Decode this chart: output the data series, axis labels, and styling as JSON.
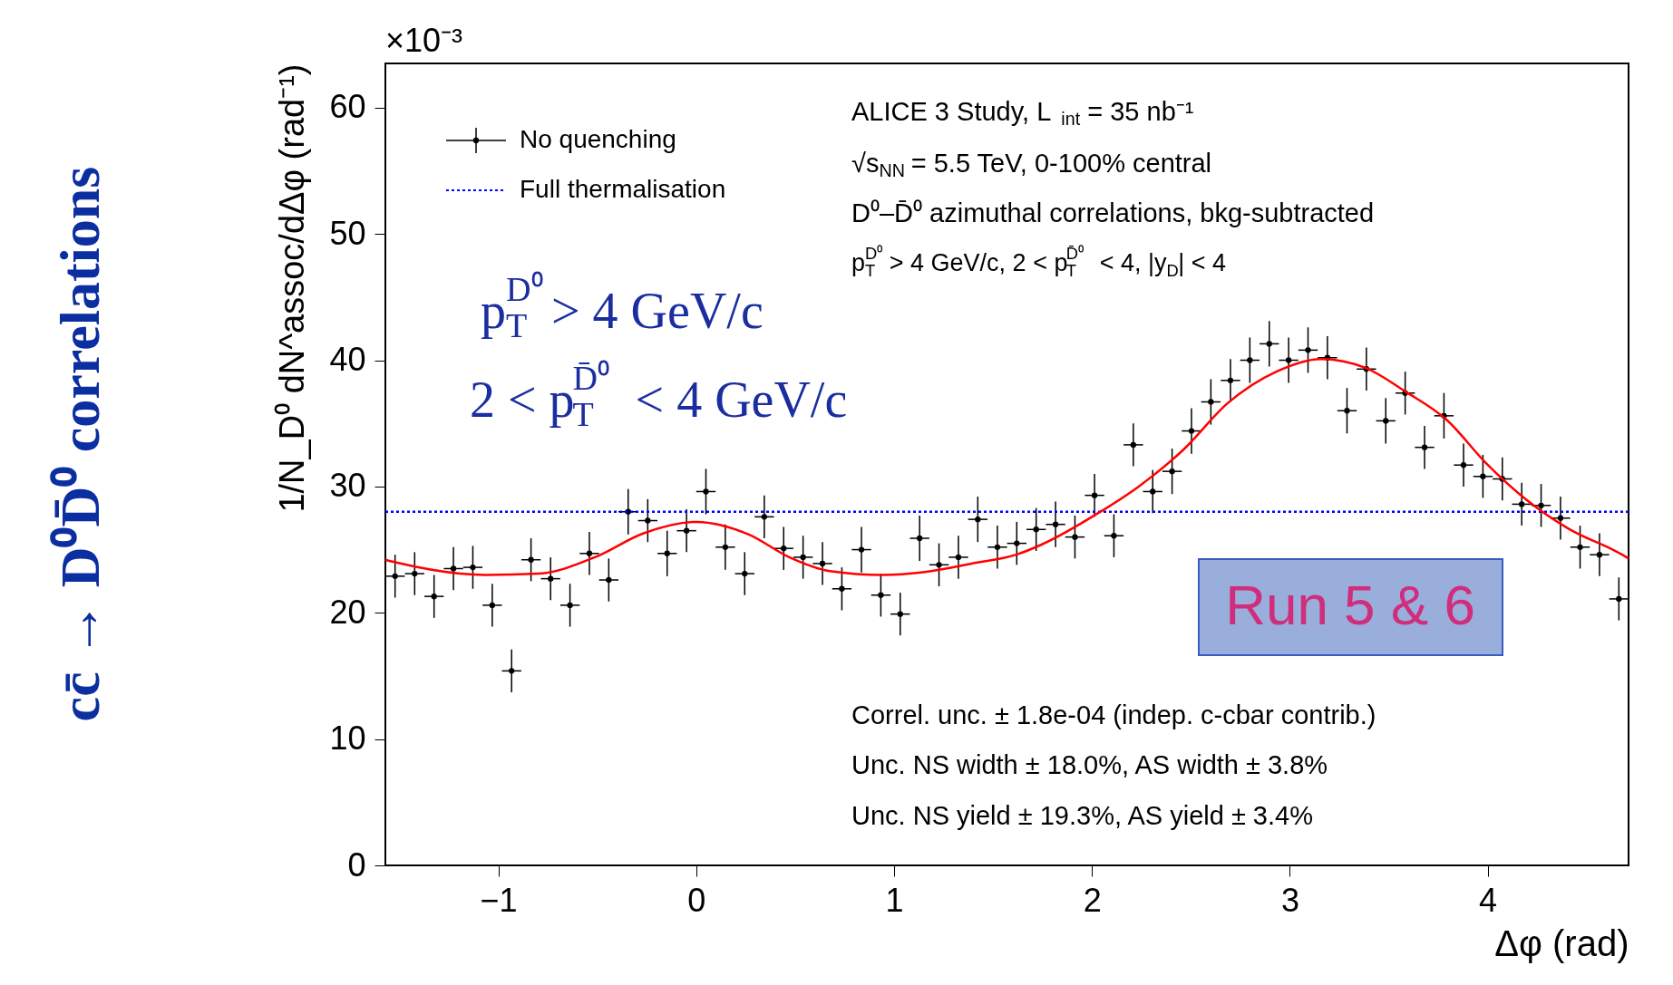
{
  "chart_data": {
    "type": "scatter",
    "title": "cc̄ → D⁰D̄⁰ correlations",
    "xlabel": "Δφ (rad)",
    "ylabel": "1/N_D⁰ dN^assoc/dΔφ (rad⁻¹)",
    "xlim": [
      -1.571,
      4.712
    ],
    "ylim": [
      0,
      63.5
    ],
    "xticks": [
      -1,
      0,
      1,
      2,
      3,
      4
    ],
    "yticks": [
      0,
      10,
      20,
      30,
      40,
      50,
      60
    ],
    "grid": false,
    "legend": "top left",
    "series": [
      {
        "name": "No quenching",
        "color": "#000000",
        "marker": "circle",
        "x": [
          -1.522,
          -1.423,
          -1.325,
          -1.227,
          -1.129,
          -1.031,
          -0.933,
          -0.835,
          -0.736,
          -0.638,
          -0.54,
          -0.442,
          -0.344,
          -0.245,
          -0.147,
          -0.049,
          0.049,
          0.147,
          0.245,
          0.344,
          0.442,
          0.54,
          0.638,
          0.736,
          0.835,
          0.933,
          1.031,
          1.129,
          1.227,
          1.325,
          1.423,
          1.522,
          1.62,
          1.718,
          1.816,
          1.914,
          2.013,
          2.111,
          2.209,
          2.307,
          2.405,
          2.503,
          2.601,
          2.7,
          2.798,
          2.896,
          2.994,
          3.092,
          3.19,
          3.289,
          3.387,
          3.485,
          3.583,
          3.681,
          3.779,
          3.878,
          3.976,
          4.074,
          4.172,
          4.27,
          4.368,
          4.467,
          4.565,
          4.663
        ],
        "values": [
          22.9,
          23.1,
          21.3,
          23.5,
          23.6,
          20.6,
          15.4,
          24.2,
          22.7,
          20.6,
          24.7,
          22.6,
          28.0,
          27.3,
          24.7,
          26.5,
          29.6,
          25.2,
          23.1,
          27.6,
          25.1,
          24.4,
          23.9,
          21.9,
          25.0,
          21.4,
          19.9,
          25.9,
          23.8,
          24.4,
          27.4,
          25.2,
          25.5,
          26.6,
          27.0,
          26.0,
          29.3,
          26.1,
          33.3,
          29.6,
          31.2,
          34.4,
          36.7,
          38.4,
          40.0,
          41.3,
          40.0,
          40.8,
          40.2,
          36.0,
          39.3,
          35.2,
          37.4,
          33.1,
          35.6,
          31.7,
          30.8,
          30.6,
          28.6,
          28.5,
          27.5,
          25.2,
          24.6,
          21.1
        ],
        "errors": [
          1.7,
          1.7,
          1.7,
          1.7,
          1.7,
          1.7,
          1.7,
          1.7,
          1.7,
          1.7,
          1.7,
          1.7,
          1.8,
          1.7,
          1.8,
          1.7,
          1.8,
          1.8,
          1.7,
          1.7,
          1.7,
          1.7,
          1.7,
          1.7,
          1.8,
          1.7,
          1.7,
          1.8,
          1.7,
          1.7,
          1.8,
          1.7,
          1.7,
          1.7,
          1.8,
          1.7,
          1.7,
          1.7,
          1.7,
          1.7,
          1.8,
          1.8,
          1.8,
          1.7,
          1.8,
          1.8,
          1.8,
          1.8,
          1.7,
          1.8,
          1.7,
          1.8,
          1.7,
          1.7,
          1.8,
          1.7,
          1.7,
          1.7,
          1.7,
          1.7,
          1.7,
          1.7,
          1.7,
          1.7
        ],
        "xerrors": [
          0.049,
          0.049,
          0.049,
          0.049,
          0.049,
          0.049,
          0.049,
          0.049,
          0.049,
          0.049,
          0.049,
          0.049,
          0.049,
          0.049,
          0.049,
          0.049,
          0.049,
          0.049,
          0.049,
          0.049,
          0.049,
          0.049,
          0.049,
          0.049,
          0.049,
          0.049,
          0.049,
          0.049,
          0.049,
          0.049,
          0.049,
          0.049,
          0.049,
          0.049,
          0.049,
          0.049,
          0.049,
          0.049,
          0.049,
          0.049,
          0.049,
          0.049,
          0.049,
          0.049,
          0.049,
          0.049,
          0.049,
          0.049,
          0.049,
          0.049,
          0.049,
          0.049,
          0.049,
          0.049,
          0.049,
          0.049,
          0.049,
          0.049,
          0.049,
          0.049,
          0.049,
          0.049,
          0.049,
          0.049
        ]
      },
      {
        "type": "line",
        "name": "Full thermalisation",
        "color": "#0000ff",
        "line_style": "dotted",
        "x": [
          -1.571,
          4.712
        ],
        "values": [
          28,
          28
        ]
      },
      {
        "type": "line",
        "color": "#ff0000",
        "line_style": "solid",
        "x": [
          -1.571,
          -1.52,
          -1.064,
          -0.798,
          -0.512,
          -0.266,
          0.0,
          0.266,
          0.47,
          0.675,
          0.941,
          1.187,
          1.392,
          1.617,
          1.745,
          2.032,
          2.236,
          2.461,
          2.686,
          2.932,
          3.157,
          3.382,
          3.586,
          3.791,
          3.995,
          4.2,
          4.404,
          4.68,
          4.712
        ],
        "values": [
          24.2,
          24.0,
          23.0,
          23.1,
          24.4,
          26.3,
          27.2,
          26.2,
          24.4,
          23.3,
          23.0,
          23.3,
          23.9,
          24.6,
          25.4,
          27.9,
          30.0,
          32.9,
          36.6,
          39.1,
          40.1,
          39.4,
          37.5,
          35.3,
          31.8,
          28.9,
          26.7,
          24.6,
          24.3
        ]
      }
    ],
    "annotations": [
      "×10⁻³",
      "ALICE 3 Study, L$_{int}$ = 35 nb⁻¹",
      "√s$_{NN}$ = 5.5 TeV, 0-100% central",
      "D⁰–D̄⁰ azimuthal correlations, bkg-subtracted",
      "p$_{T}$$^{D⁰}$ > 4 GeV/c, 2 < p$_{T}$$^{D̄⁰}$ < 4, |y$_{D}$| < 4",
      "p$_{T}$$^{D⁰}$ > 4 GeV/c",
      "2 < p$_{T}$$^{D̄⁰}$ < 4 GeV/c",
      "Run 5 & 6",
      "Correl. unc. ± 1.8e-04 (indep. c-cbar contrib.)",
      "Unc. NS width ± 18.0%, AS width ± 3.8%",
      "Unc. NS yield ± 19.3%, AS yield ± 3.4%"
    ]
  }
}
